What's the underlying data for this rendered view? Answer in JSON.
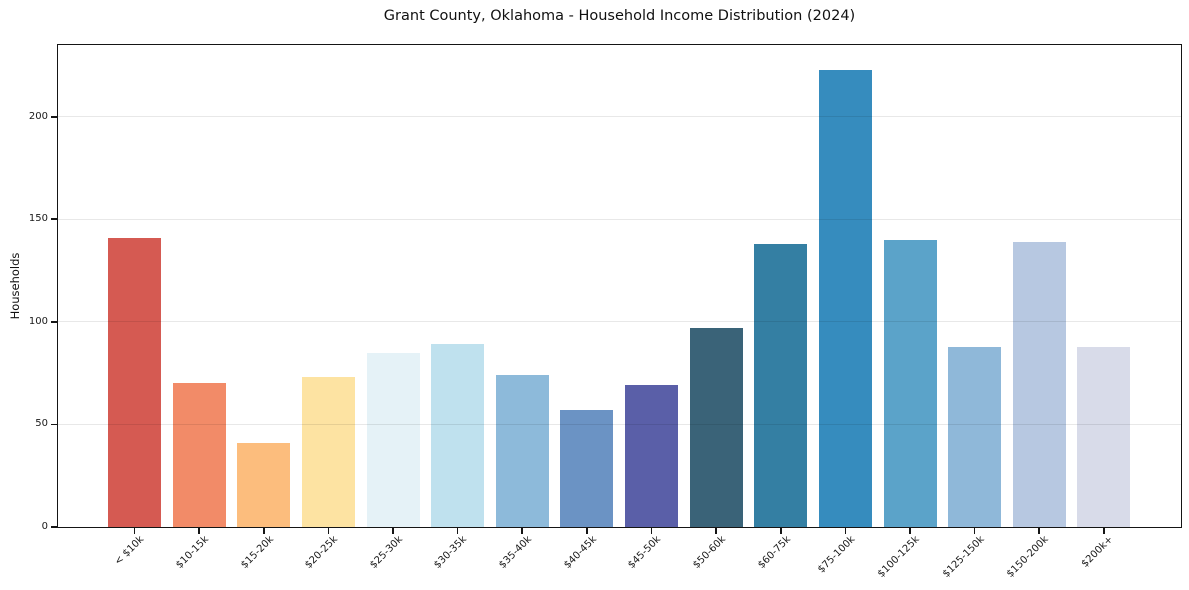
{
  "chart_data": {
    "type": "bar",
    "title": "Grant County, Oklahoma - Household Income Distribution (2024)",
    "xlabel": "",
    "ylabel": "Households",
    "categories": [
      "< $10k",
      "$10-15k",
      "$15-20k",
      "$20-25k",
      "$25-30k",
      "$30-35k",
      "$35-40k",
      "$40-45k",
      "$45-50k",
      "$50-60k",
      "$60-75k",
      "$75-100k",
      "$100-125k",
      "$125-150k",
      "$150-200k",
      "$200k+"
    ],
    "values": [
      141,
      70,
      41,
      73,
      85,
      89,
      74,
      57,
      69,
      97,
      138,
      223,
      140,
      88,
      139,
      88
    ],
    "bar_colors": [
      "#d55a52",
      "#f28b68",
      "#fcbd7d",
      "#fde3a2",
      "#e5f2f7",
      "#bfe1ee",
      "#8dbada",
      "#6b93c4",
      "#5a5fa8",
      "#3a6378",
      "#347fa3",
      "#368cbe",
      "#5ba3c9",
      "#8fb8d9",
      "#b7c8e1",
      "#d8dbe9"
    ],
    "yticks": [
      0,
      50,
      100,
      150,
      200
    ],
    "ylim": [
      0,
      235
    ],
    "grid": true,
    "legend_position": "none",
    "x_tick_rotation_deg": 45
  },
  "style": {
    "background": "#ffffff",
    "frame_color": "#151515",
    "grid_color": "#e8e8e8",
    "text_color": "#111111"
  }
}
